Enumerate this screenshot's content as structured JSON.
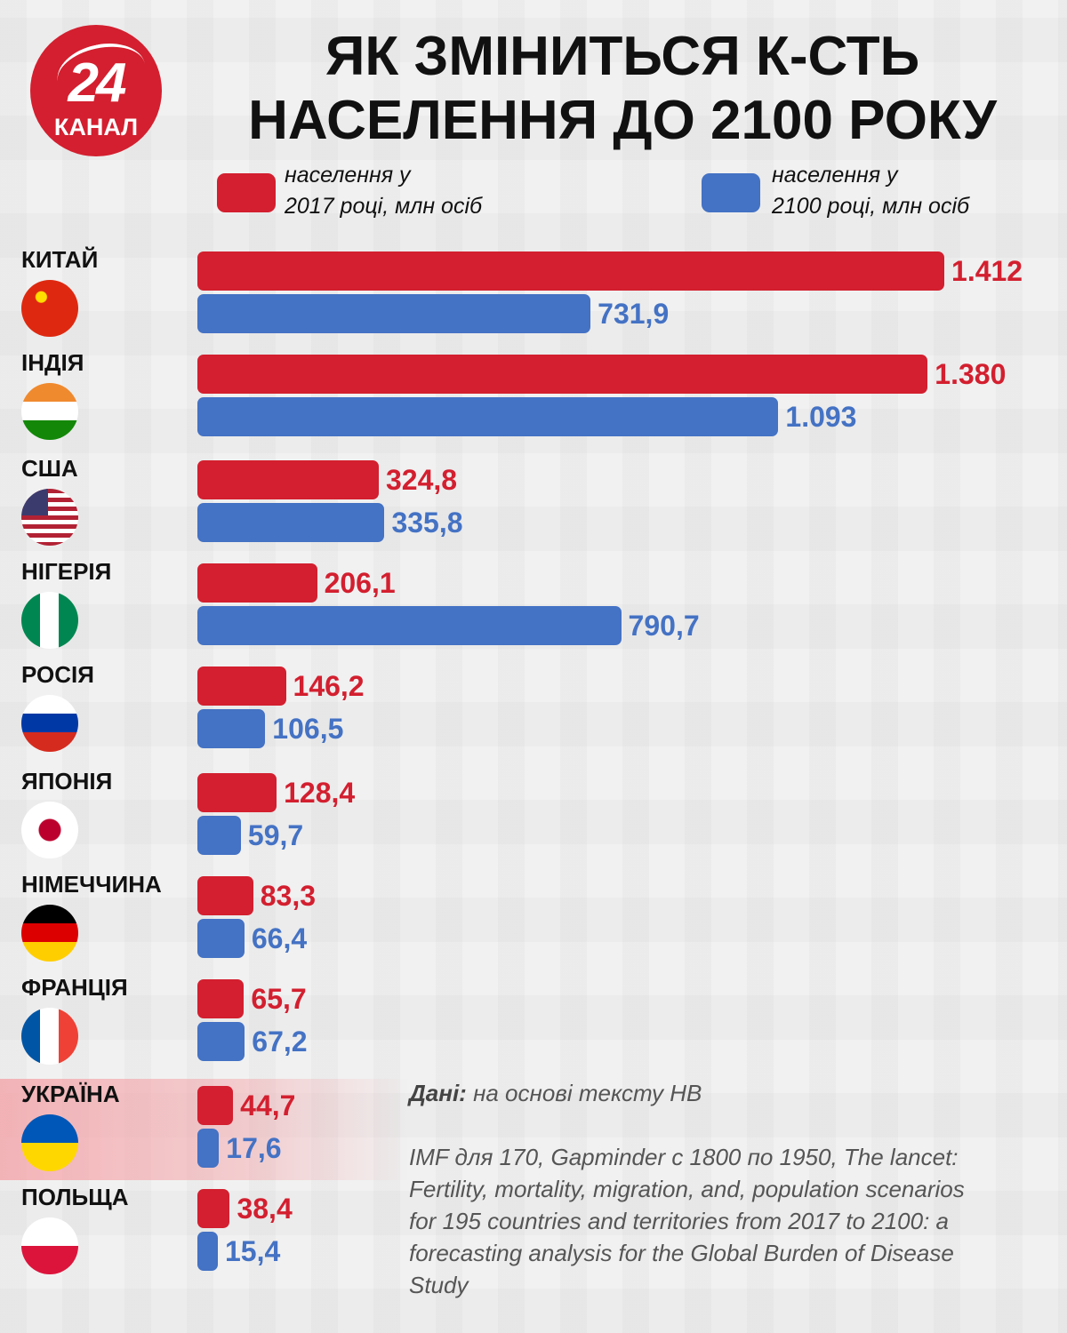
{
  "logo": {
    "number": "24",
    "word": "КАНАЛ"
  },
  "chart_data": {
    "type": "bar",
    "orientation": "horizontal",
    "title": "ЯК ЗМІНИТЬСЯ К-СТЬ НАСЕЛЕННЯ ДО 2100 РОКУ",
    "categories": [
      "КИТАЙ",
      "ІНДІЯ",
      "США",
      "НІГЕРІЯ",
      "РОСІЯ",
      "ЯПОНІЯ",
      "НІМЕЧЧИНА",
      "ФРАНЦІЯ",
      "УКРАЇНА",
      "ПОЛЬЩА"
    ],
    "highlight": "УКРАЇНА",
    "legend": {
      "placement": "top"
    },
    "series": [
      {
        "name": "населення у 2017 році, млн осіб",
        "legend_line1": "населення у",
        "legend_line2": "2017 році, млн осіб",
        "color": "#d31f2f",
        "values": [
          1412,
          1380,
          324.8,
          206.1,
          146.2,
          128.4,
          83.3,
          65.7,
          44.7,
          38.4
        ],
        "labels": [
          "1.412",
          "1.380",
          "324,8",
          "206,1",
          "146,2",
          "128,4",
          "83,3",
          "65,7",
          "44,7",
          "38,4"
        ]
      },
      {
        "name": "населення у 2100 році, млн осіб",
        "legend_line1": "населення у",
        "legend_line2": "2100 році, млн осіб",
        "color": "#4472c4",
        "values": [
          731.9,
          1093,
          335.8,
          790.7,
          106.5,
          59.7,
          66.4,
          67.2,
          17.6,
          15.4
        ],
        "labels": [
          "731,9",
          "1.093",
          "335,8",
          "790,7",
          "106,5",
          "59,7",
          "66,4",
          "67,2",
          "17,6",
          "15,4"
        ]
      }
    ]
  },
  "source": {
    "label": "Дані:",
    "text": "на основі тексту НВ",
    "lines": [
      "IMF для 170, Gapminder с 1800 по 1950, The lancet:",
      "Fertility, mortality, migration, and, population scenarios",
      "for 195 countries and territories from 2017 to 2100: a",
      "forecasting analysis for the Global Burden of Disease",
      "Study"
    ]
  }
}
